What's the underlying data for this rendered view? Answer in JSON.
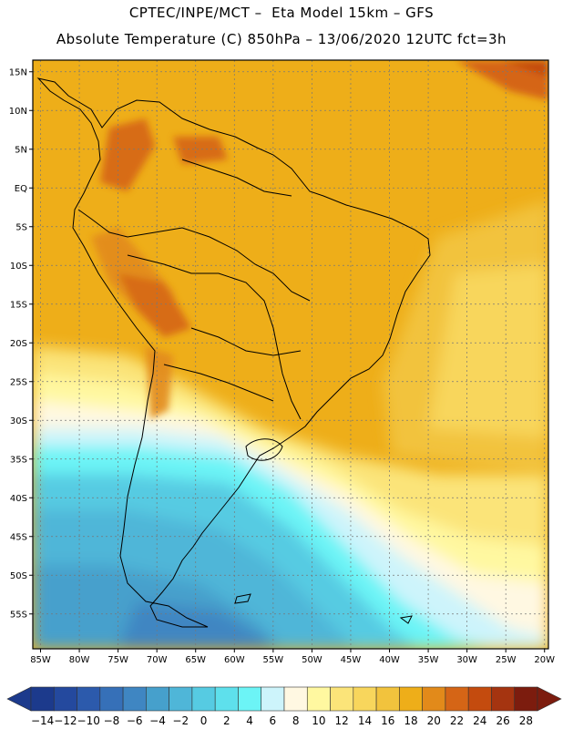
{
  "title_line1": "CPTEC/INPE/MCT –  Eta Model 15km – GFS",
  "title_line2": "Absolute Temperature (C) 850hPa – 13/06/2020 12UTC fct=3h",
  "lat_labels": [
    "15N",
    "10N",
    "5N",
    "EQ",
    "5S",
    "10S",
    "15S",
    "20S",
    "25S",
    "30S",
    "35S",
    "40S",
    "45S",
    "50S",
    "55S"
  ],
  "lat_values": [
    15,
    10,
    5,
    0,
    -5,
    -10,
    -15,
    -20,
    -25,
    -30,
    -35,
    -40,
    -45,
    -50,
    -55
  ],
  "lon_labels": [
    "85W",
    "80W",
    "75W",
    "70W",
    "65W",
    "60W",
    "55W",
    "50W",
    "45W",
    "40W",
    "35W",
    "30W",
    "25W",
    "20W"
  ],
  "lon_values": [
    -85,
    -80,
    -75,
    -70,
    -65,
    -60,
    -55,
    -50,
    -45,
    -40,
    -35,
    -30,
    -25,
    -20
  ],
  "colorbar": {
    "labels": [
      "-14",
      "-12",
      "-10",
      "-8",
      "-6",
      "-4",
      "-2",
      "0",
      "2",
      "4",
      "6",
      "8",
      "10",
      "12",
      "14",
      "16",
      "18",
      "20",
      "22",
      "24",
      "26",
      "28"
    ],
    "colors": [
      "#1c3a8c",
      "#24499e",
      "#2c5aac",
      "#3670b8",
      "#3f86c2",
      "#46a0cc",
      "#4fb6d8",
      "#56cbe2",
      "#5ee0ec",
      "#6cf4f6",
      "#cdf4fb",
      "#fff8e2",
      "#fff8a0",
      "#fbe479",
      "#f8d65c",
      "#f2c33d",
      "#eeae19",
      "#e28a1a",
      "#d56516",
      "#c44b0e",
      "#a53410",
      "#7c1c0e"
    ],
    "under_color": "#1c3a8c",
    "over_color": "#7c1c0e"
  }
}
